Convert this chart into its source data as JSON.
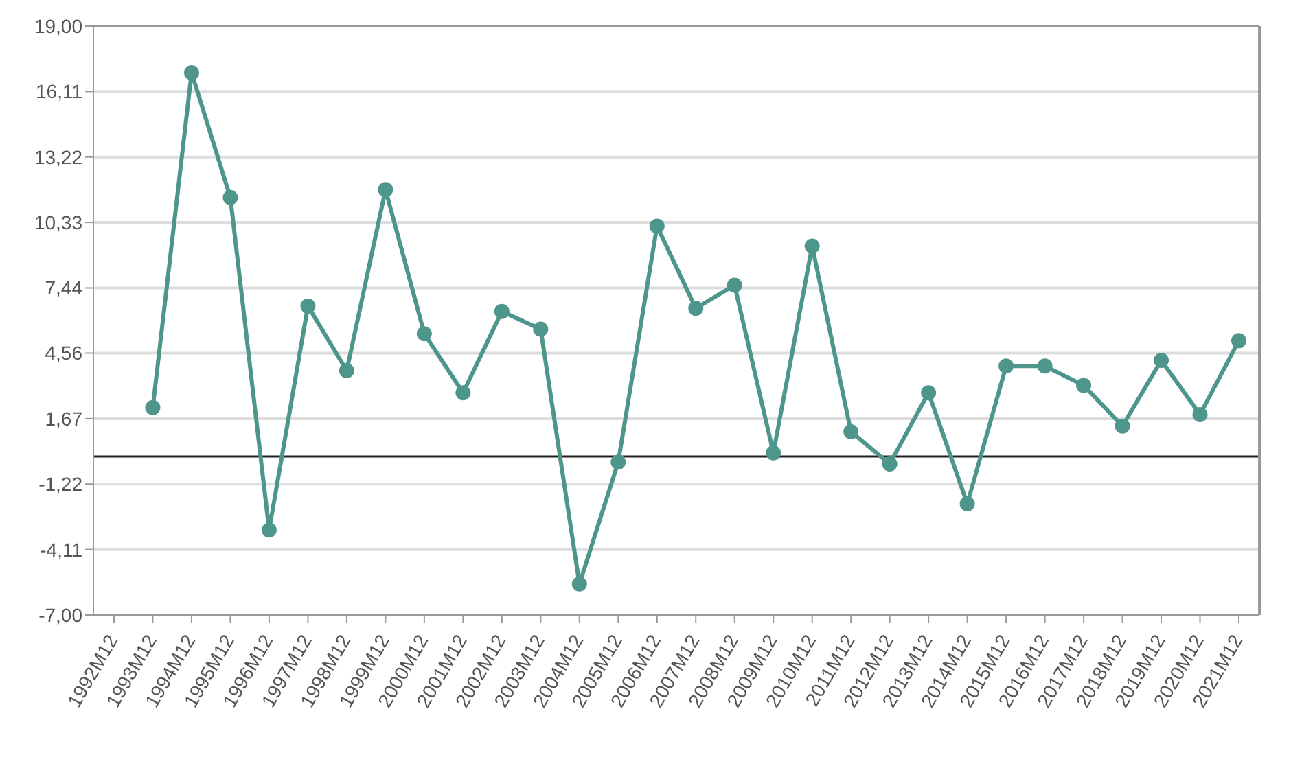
{
  "chart_data": {
    "type": "line",
    "categories": [
      "1992M12",
      "1993M12",
      "1994M12",
      "1995M12",
      "1996M12",
      "1997M12",
      "1998M12",
      "1999M12",
      "2000M12",
      "2001M12",
      "2002M12",
      "2003M12",
      "2004M12",
      "2005M12",
      "2006M12",
      "2007M12",
      "2008M12",
      "2009M12",
      "2010M12",
      "2011M12",
      "2012M12",
      "2013M12",
      "2014M12",
      "2015M12",
      "2016M12",
      "2017M12",
      "2018M12",
      "2019M12",
      "2020M12",
      "2021M12"
    ],
    "series": [
      {
        "color": "#4e968c",
        "values": [
          null,
          2.16,
          16.94,
          11.43,
          -3.25,
          6.64,
          3.79,
          11.78,
          5.42,
          2.81,
          6.4,
          5.62,
          -5.63,
          -0.25,
          10.17,
          6.54,
          7.56,
          0.16,
          9.29,
          1.09,
          -0.33,
          2.81,
          -2.09,
          3.99,
          3.99,
          3.14,
          1.34,
          4.24,
          1.85,
          5.11
        ]
      }
    ],
    "ylim": [
      -7,
      19
    ],
    "yticks": [
      {
        "value": -7,
        "label": "-7,00"
      },
      {
        "value": -4.11,
        "label": "-4,11"
      },
      {
        "value": -1.22,
        "label": "-1,22"
      },
      {
        "value": 1.67,
        "label": "1,67"
      },
      {
        "value": 4.56,
        "label": "4,56"
      },
      {
        "value": 7.44,
        "label": "7,44"
      },
      {
        "value": 10.33,
        "label": "10,33"
      },
      {
        "value": 13.22,
        "label": "13,22"
      },
      {
        "value": 16.11,
        "label": "16,11"
      },
      {
        "value": 19,
        "label": "19,00"
      }
    ],
    "grid": "y",
    "marker": "circle",
    "line_style": "solid",
    "ref_lines": [
      {
        "axis": "y",
        "value": 0,
        "color": "#222222"
      }
    ]
  }
}
